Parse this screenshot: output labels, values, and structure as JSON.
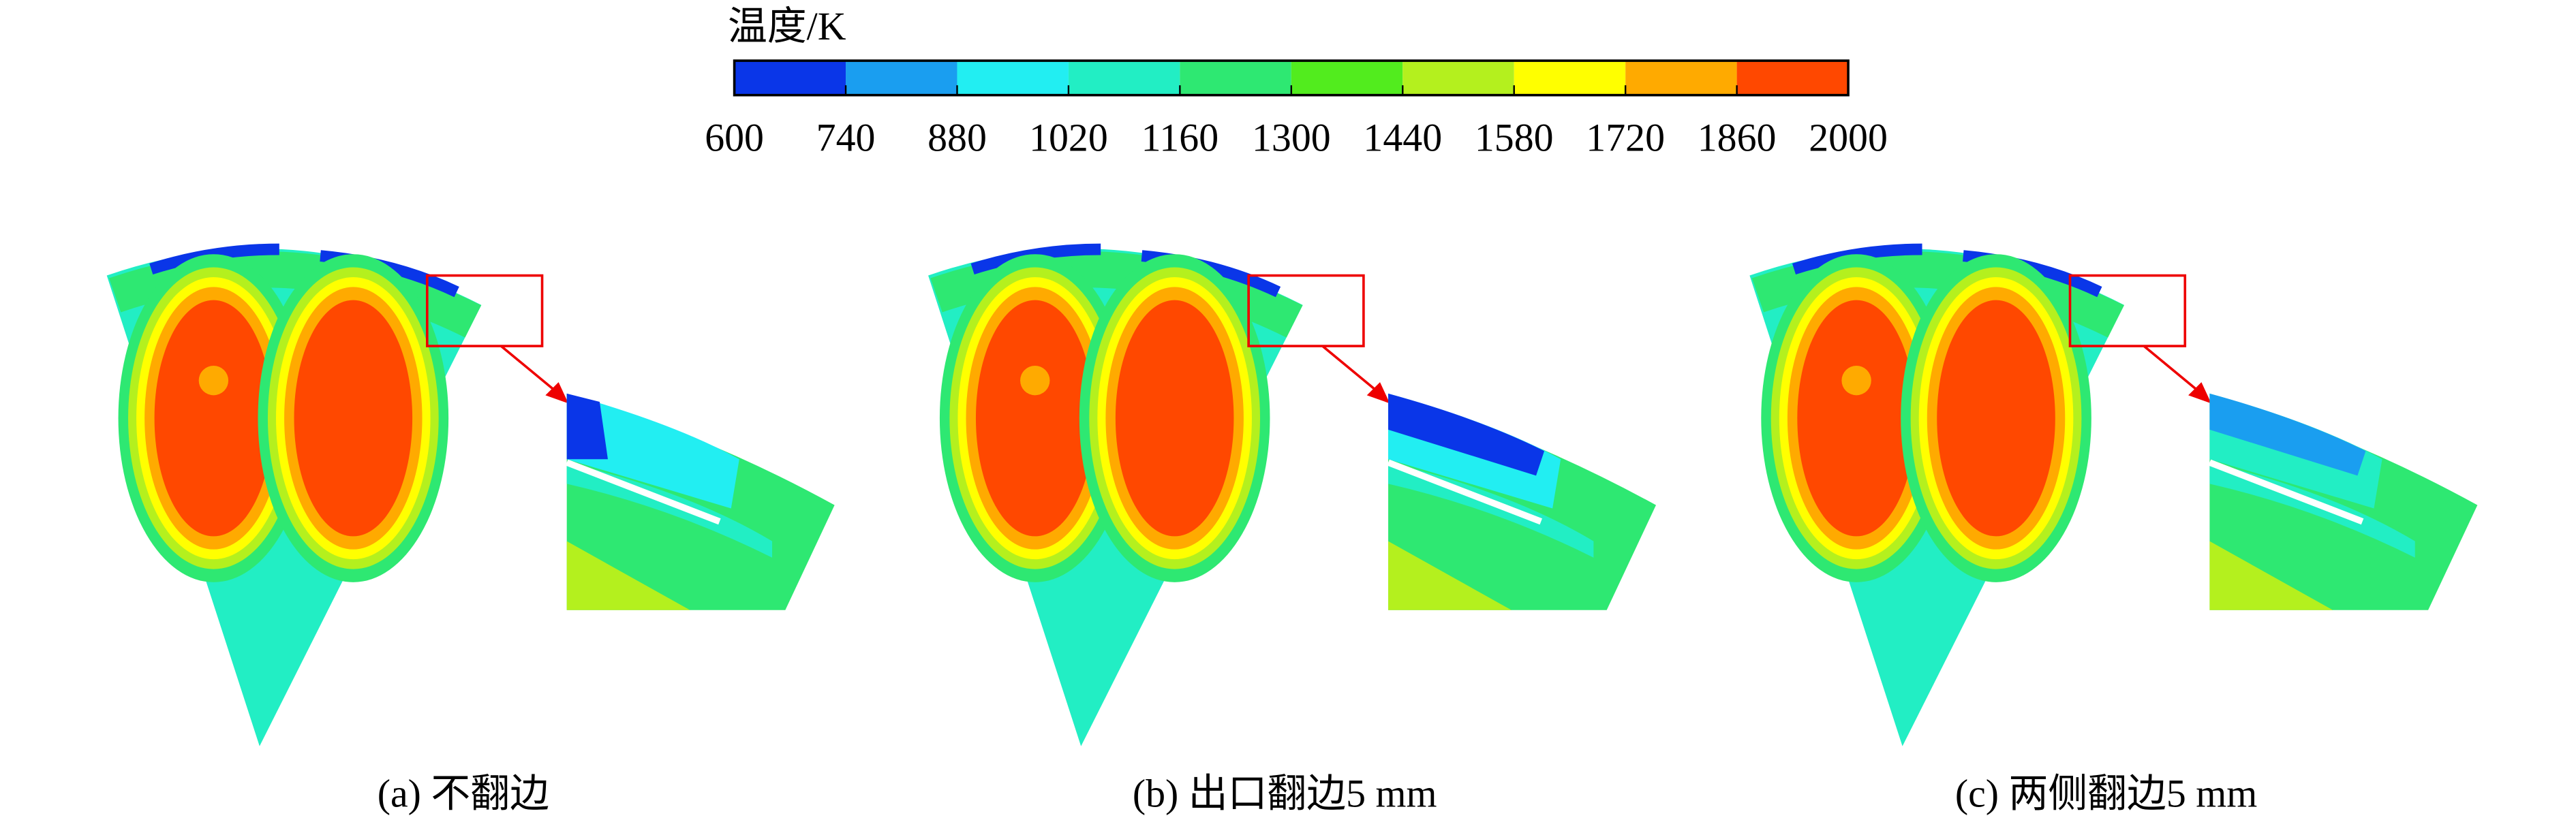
{
  "colorbar": {
    "title": "温度/K",
    "ticks": [
      600,
      740,
      880,
      1020,
      1160,
      1300,
      1440,
      1580,
      1720,
      1860,
      2000
    ],
    "colors": [
      "#0a36e8",
      "#1a9ef0",
      "#22eef2",
      "#22eec4",
      "#2ee872",
      "#52ec1e",
      "#b4f01e",
      "#ffff00",
      "#ffaa00",
      "#ff4800"
    ]
  },
  "panels": [
    {
      "caption": "(a) 不翻边"
    },
    {
      "caption": "(b) 出口翻边5 mm"
    },
    {
      "caption": "(c) 两侧翻边5 mm"
    }
  ]
}
